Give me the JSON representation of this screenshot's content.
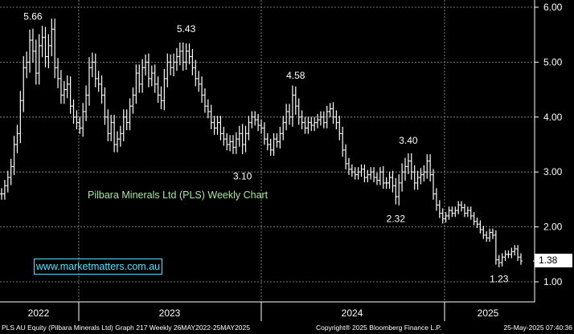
{
  "chart_data": {
    "type": "ohlc",
    "title": "Pilbara Minerals Ltd (PLS) Weekly Chart",
    "website": "www.marketmatters.com.au",
    "last_price": "1.38",
    "y_ticks": [
      "6.00",
      "5.00",
      "4.00",
      "3.00",
      "2.00",
      "1.00"
    ],
    "y_tick_values": [
      6,
      5,
      4,
      3,
      2,
      1
    ],
    "x_labels": [
      "2022",
      "2023",
      "2024",
      "2025"
    ],
    "ylim": [
      0.8,
      6.2
    ],
    "grid": true,
    "annotations": [
      {
        "text": "5.66",
        "week": 10,
        "value": 5.66,
        "place": "above"
      },
      {
        "text": "5.43",
        "week": 59,
        "value": 5.43,
        "place": "above"
      },
      {
        "text": "3.10",
        "week": 77,
        "value": 3.1,
        "place": "below"
      },
      {
        "text": "4.58",
        "week": 94,
        "value": 4.58,
        "place": "above"
      },
      {
        "text": "2.32",
        "week": 126,
        "value": 2.32,
        "place": "below"
      },
      {
        "text": "3.40",
        "week": 130,
        "value": 3.4,
        "place": "above"
      },
      {
        "text": "1.23",
        "week": 159,
        "value": 1.23,
        "place": "below"
      }
    ],
    "closes": [
      2.6,
      2.75,
      2.9,
      3.1,
      3.5,
      3.7,
      4.3,
      4.9,
      5.0,
      5.4,
      5.2,
      4.8,
      5.3,
      5.45,
      5.1,
      5.3,
      5.6,
      4.9,
      4.7,
      4.4,
      4.5,
      4.6,
      4.2,
      4.0,
      3.9,
      3.8,
      4.1,
      4.4,
      4.9,
      5.0,
      4.7,
      4.6,
      4.4,
      4.0,
      3.7,
      3.9,
      3.5,
      3.6,
      3.7,
      4.0,
      3.9,
      4.2,
      4.4,
      4.8,
      4.6,
      4.9,
      5.0,
      4.7,
      4.8,
      4.6,
      4.4,
      4.3,
      4.7,
      5.0,
      4.9,
      5.0,
      5.1,
      5.2,
      5.0,
      5.2,
      5.1,
      4.9,
      4.7,
      4.6,
      4.4,
      4.2,
      4.1,
      3.9,
      3.8,
      3.9,
      3.7,
      3.6,
      3.5,
      3.55,
      3.45,
      3.6,
      3.7,
      3.5,
      3.7,
      3.9,
      4.0,
      3.95,
      3.85,
      3.8,
      3.6,
      3.5,
      3.4,
      3.6,
      3.55,
      3.7,
      3.9,
      4.1,
      4.0,
      4.4,
      4.2,
      4.0,
      3.9,
      3.8,
      3.9,
      3.85,
      3.9,
      3.95,
      4.0,
      3.9,
      4.1,
      4.15,
      4.0,
      3.9,
      3.7,
      3.4,
      3.15,
      3.05,
      3.0,
      2.95,
      3.0,
      3.05,
      2.9,
      2.95,
      3.0,
      2.9,
      2.85,
      3.0,
      2.8,
      2.8,
      2.9,
      2.75,
      2.55,
      2.8,
      3.0,
      3.1,
      3.2,
      3.0,
      2.8,
      2.9,
      2.95,
      3.0,
      3.2,
      2.95,
      2.6,
      2.4,
      2.25,
      2.15,
      2.2,
      2.3,
      2.25,
      2.3,
      2.4,
      2.35,
      2.25,
      2.3,
      2.2,
      2.1,
      2.05,
      1.95,
      1.85,
      1.8,
      1.9,
      1.85,
      1.4,
      1.35,
      1.45,
      1.5,
      1.5,
      1.55,
      1.6,
      1.45,
      1.38
    ],
    "ranges": [
      0.3,
      0.3,
      0.35,
      0.4,
      0.45,
      0.45,
      0.5,
      0.6,
      0.55,
      0.55,
      0.6,
      0.6,
      0.6,
      0.6,
      0.55,
      0.6,
      0.55,
      0.55,
      0.5,
      0.45,
      0.45,
      0.45,
      0.4,
      0.35,
      0.35,
      0.3,
      0.45,
      0.5,
      0.55,
      0.5,
      0.45,
      0.4,
      0.45,
      0.4,
      0.4,
      0.4,
      0.4,
      0.4,
      0.4,
      0.4,
      0.4,
      0.4,
      0.4,
      0.45,
      0.45,
      0.45,
      0.4,
      0.45,
      0.4,
      0.45,
      0.4,
      0.45,
      0.5,
      0.45,
      0.4,
      0.45,
      0.45,
      0.45,
      0.45,
      0.4,
      0.4,
      0.4,
      0.4,
      0.4,
      0.4,
      0.35,
      0.35,
      0.35,
      0.35,
      0.35,
      0.35,
      0.35,
      0.3,
      0.35,
      0.35,
      0.35,
      0.4,
      0.5,
      0.4,
      0.35,
      0.3,
      0.3,
      0.3,
      0.3,
      0.3,
      0.3,
      0.3,
      0.3,
      0.3,
      0.35,
      0.35,
      0.4,
      0.4,
      0.5,
      0.45,
      0.4,
      0.35,
      0.3,
      0.3,
      0.3,
      0.3,
      0.3,
      0.3,
      0.3,
      0.3,
      0.3,
      0.35,
      0.35,
      0.35,
      0.35,
      0.3,
      0.3,
      0.25,
      0.25,
      0.25,
      0.25,
      0.25,
      0.25,
      0.25,
      0.25,
      0.25,
      0.25,
      0.3,
      0.3,
      0.3,
      0.35,
      0.4,
      0.45,
      0.45,
      0.45,
      0.4,
      0.4,
      0.35,
      0.35,
      0.35,
      0.35,
      0.35,
      0.35,
      0.3,
      0.3,
      0.25,
      0.25,
      0.2,
      0.2,
      0.2,
      0.2,
      0.2,
      0.2,
      0.2,
      0.2,
      0.2,
      0.2,
      0.2,
      0.2,
      0.2,
      0.2,
      0.2,
      0.2,
      0.25,
      0.25,
      0.2,
      0.2,
      0.2,
      0.2,
      0.2,
      0.2,
      0.2,
      0.2
    ]
  },
  "footer": {
    "left": "PLS AU Equity (Pilbara Minerals Ltd) Graph 217  Weekly 26MAY2022-25MAY2025",
    "center": "Copyright® 2025 Bloomberg Finance L.P.",
    "right": "25-May-2025 07:40:36"
  },
  "colors": {
    "background": "#000000",
    "bars": "#ffffff",
    "grid": "#9a9a9a",
    "title": "#a8e6a0",
    "website": "#4fe3ff"
  }
}
